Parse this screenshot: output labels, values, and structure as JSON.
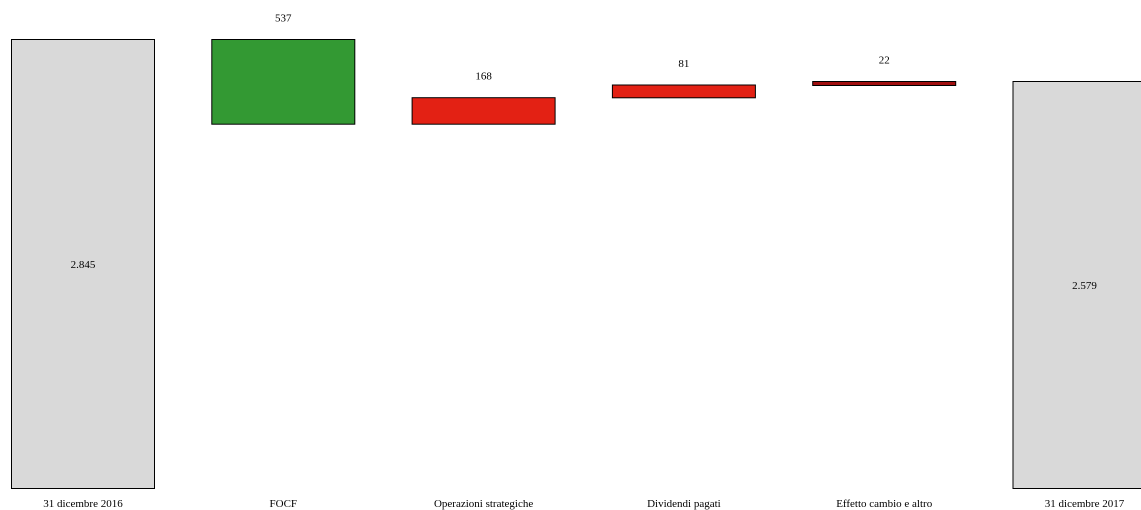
{
  "chart_data": {
    "type": "bar",
    "subtype": "waterfall",
    "title": "",
    "xlabel": "",
    "ylabel": "",
    "grid": false,
    "legend": "none",
    "categories": [
      "31 dicembre 2016",
      "FOCF",
      "Operazioni strategiche",
      "Dividendi pagati",
      "Effetto cambio e altro",
      "31 dicembre 2017"
    ],
    "bars": [
      {
        "category": "31 dicembre 2016",
        "kind": "total",
        "start": 0,
        "end": 2845,
        "label": "2.845"
      },
      {
        "category": "FOCF",
        "kind": "decrease",
        "start": 2845,
        "end": 2308,
        "label": "537"
      },
      {
        "category": "Operazioni strategiche",
        "kind": "increase",
        "start": 2308,
        "end": 2476,
        "label": "168"
      },
      {
        "category": "Dividendi pagati",
        "kind": "increase",
        "start": 2476,
        "end": 2557,
        "label": "81"
      },
      {
        "category": "Effetto cambio e altro",
        "kind": "increase",
        "start": 2557,
        "end": 2579,
        "label": "22"
      },
      {
        "category": "31 dicembre 2017",
        "kind": "total",
        "start": 0,
        "end": 2579,
        "label": "2.579"
      }
    ],
    "ylim": [
      0,
      2845
    ],
    "colors": {
      "total": "#d9d9d9",
      "decrease": "#339933",
      "increase": "#e32114",
      "small_increase": "#a00f0f",
      "stroke": "#000000"
    }
  }
}
